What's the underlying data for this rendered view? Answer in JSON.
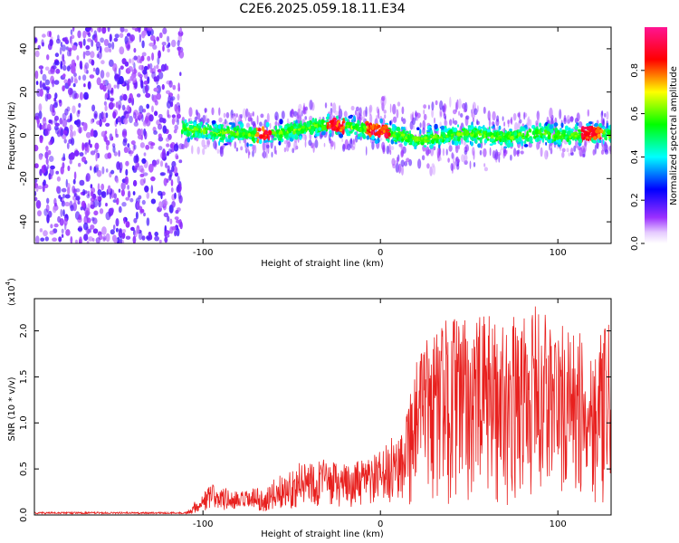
{
  "title": "C2E6.2025.059.18.11.E34",
  "colors": {
    "snr_line": "#e8201e",
    "noise": "#8a2be2",
    "axis": "#000000"
  },
  "chart_data": [
    {
      "id": "spectrogram",
      "type": "heatmap",
      "xlabel": "Height of straight line (km)",
      "ylabel": "Frequency (Hz)",
      "xlim": [
        -195,
        130
      ],
      "ylim": [
        -50,
        50
      ],
      "x_ticks": [
        -100,
        0,
        100
      ],
      "y_ticks": [
        -40,
        -20,
        0,
        20,
        40
      ],
      "x_tick_labels": [
        "-100",
        "0",
        "100"
      ],
      "y_tick_labels": [
        "-40",
        "-20",
        "0",
        "20",
        "40"
      ],
      "colorbar": {
        "label": "Normalized spectral amplitude",
        "range": [
          0,
          1
        ],
        "ticks": [
          0.0,
          0.2,
          0.4,
          0.6,
          0.8
        ],
        "tick_labels": [
          "0.0",
          "0.2",
          "0.4",
          "0.6",
          "0.8"
        ],
        "colormap": "rainbow"
      },
      "noise_region_x": [
        -195,
        -112
      ],
      "signal_start_x": -112,
      "ridge_frequency": [
        [
          -110,
          3
        ],
        [
          -100,
          2
        ],
        [
          -90,
          1
        ],
        [
          -80,
          1
        ],
        [
          -70,
          0
        ],
        [
          -60,
          1
        ],
        [
          -50,
          2
        ],
        [
          -40,
          4
        ],
        [
          -30,
          5
        ],
        [
          -20,
          4
        ],
        [
          -10,
          3
        ],
        [
          0,
          2
        ],
        [
          10,
          0
        ],
        [
          20,
          -2
        ],
        [
          30,
          -1
        ],
        [
          40,
          0
        ],
        [
          50,
          1
        ],
        [
          60,
          0
        ],
        [
          70,
          -1
        ],
        [
          80,
          0
        ],
        [
          90,
          1
        ],
        [
          100,
          0
        ],
        [
          110,
          0
        ],
        [
          120,
          1
        ],
        [
          130,
          0
        ]
      ],
      "peak_regions_x": [
        [
          -70,
          -62
        ],
        [
          -30,
          -20
        ],
        [
          -8,
          5
        ],
        [
          113,
          125
        ]
      ]
    },
    {
      "id": "snr",
      "type": "line",
      "xlabel": "Height of straight line (km)",
      "ylabel": "SNR (10 * v/v)",
      "y_multiplier": "(x10",
      "y_multiplier_exp": "4",
      "y_multiplier_close": ")",
      "xlim": [
        -195,
        130
      ],
      "ylim": [
        0,
        23500
      ],
      "x_ticks": [
        -100,
        0,
        100
      ],
      "y_ticks": [
        0,
        5000,
        10000,
        15000,
        20000
      ],
      "x_tick_labels": [
        "-100",
        "0",
        "100"
      ],
      "y_tick_labels": [
        "0.0",
        "0.5",
        "1.0",
        "1.5",
        "2.0"
      ],
      "envelope": [
        [
          -195,
          200
        ],
        [
          -110,
          250
        ],
        [
          -100,
          2500
        ],
        [
          -95,
          3500
        ],
        [
          -80,
          2500
        ],
        [
          -70,
          3000
        ],
        [
          -65,
          2500
        ],
        [
          -60,
          4000
        ],
        [
          -50,
          5000
        ],
        [
          -40,
          6500
        ],
        [
          -30,
          6000
        ],
        [
          -20,
          5500
        ],
        [
          -10,
          6000
        ],
        [
          0,
          7000
        ],
        [
          5,
          8000
        ],
        [
          10,
          9500
        ],
        [
          15,
          13000
        ],
        [
          20,
          17000
        ],
        [
          25,
          19000
        ],
        [
          30,
          20000
        ],
        [
          40,
          22000
        ],
        [
          50,
          21000
        ],
        [
          60,
          22000
        ],
        [
          70,
          21000
        ],
        [
          80,
          22000
        ],
        [
          90,
          23000
        ],
        [
          100,
          21000
        ],
        [
          110,
          20000
        ],
        [
          120,
          19000
        ],
        [
          130,
          21000
        ]
      ]
    }
  ]
}
